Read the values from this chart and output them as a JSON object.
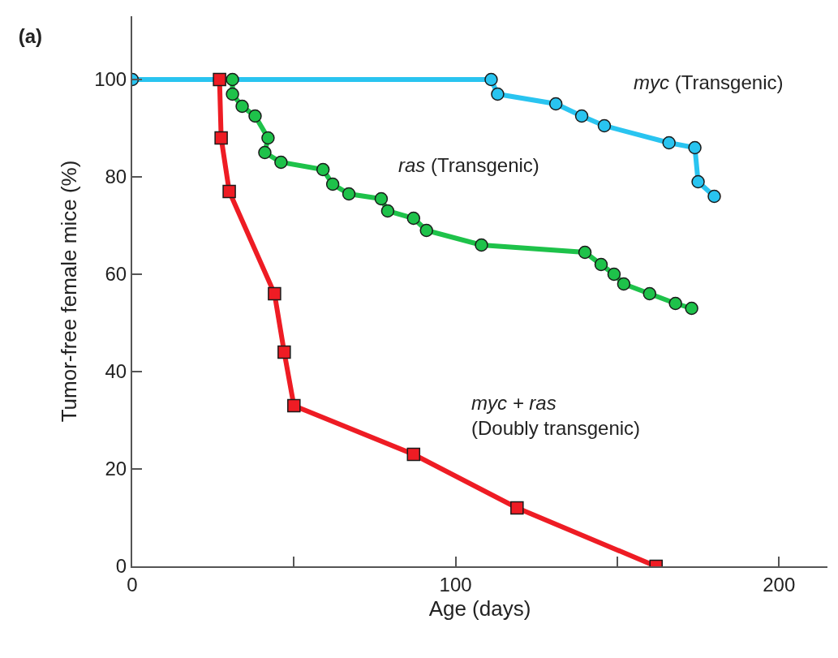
{
  "chart_data": {
    "type": "line",
    "title": "(a)",
    "xlabel": "Age (days)",
    "ylabel": "Tumor-free female mice (%)",
    "xlim": [
      0,
      215
    ],
    "xticks": [
      0,
      {
        "value": 50,
        "label": null
      },
      100,
      {
        "value": 150,
        "label": null
      },
      200
    ],
    "ylim": [
      0,
      113
    ],
    "yticks": [
      0,
      20,
      40,
      60,
      80,
      100
    ],
    "grid": false,
    "legend": false,
    "line_style": "solid",
    "series": [
      {
        "name": "myc (Transgenic)",
        "color": "#29c4f0",
        "marker": "circle",
        "x": [
          0,
          111,
          113,
          131,
          139,
          146,
          166,
          174,
          175,
          180
        ],
        "values": [
          100,
          100,
          97,
          95,
          92.5,
          90.5,
          87,
          86,
          79,
          76
        ]
      },
      {
        "name": "ras (Transgenic)",
        "color": "#1ec24a",
        "marker": "circle",
        "x": [
          31,
          31,
          34,
          38,
          42,
          41,
          46,
          59,
          62,
          67,
          77,
          79,
          87,
          91,
          108,
          140,
          145,
          149,
          152,
          160,
          168,
          173
        ],
        "values": [
          100,
          97,
          94.5,
          92.5,
          88,
          85,
          83,
          81.5,
          78.5,
          76.5,
          75.5,
          73,
          71.5,
          69,
          66,
          64.5,
          62,
          60,
          58,
          56,
          54,
          53
        ]
      },
      {
        "name": "myc + ras (Doubly transgenic)",
        "color": "#ee1c24",
        "marker": "square",
        "x": [
          27,
          27.5,
          30,
          44,
          47,
          50,
          87,
          119,
          162
        ],
        "values": [
          100,
          88,
          77,
          56,
          44,
          33,
          23,
          12,
          0
        ]
      }
    ]
  }
}
